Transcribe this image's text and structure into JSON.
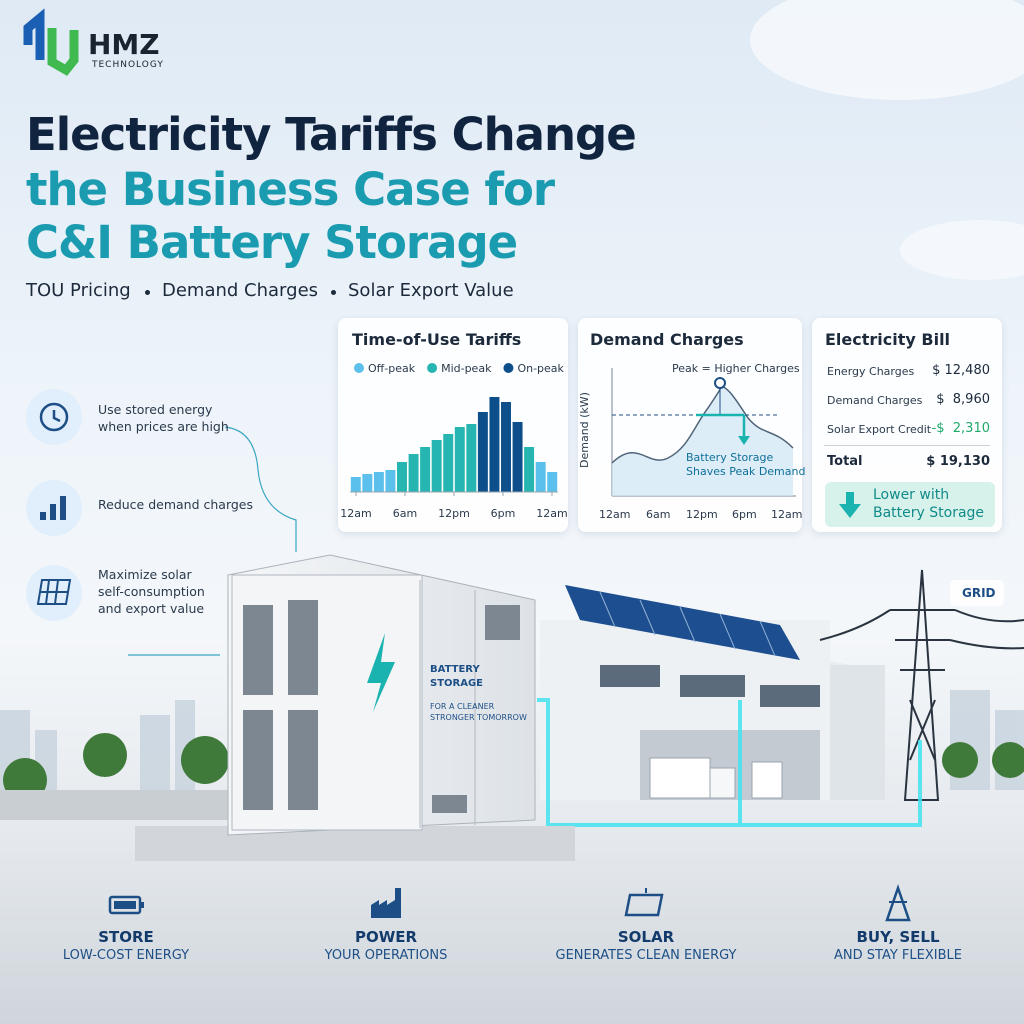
{
  "logo": {
    "name": "HMZ",
    "tagline": "TECHNOLOGY"
  },
  "headline": {
    "line1": "Electricity Tariffs Change",
    "line2": "the Business Case for",
    "line3": "C&I Battery Storage"
  },
  "subtitle_items": [
    "TOU Pricing",
    "Demand Charges",
    "Solar Export Value"
  ],
  "tou_chart": {
    "title": "Time-of-Use Tariffs",
    "x_labels": [
      "12am",
      "6am",
      "12pm",
      "6pm",
      "12am"
    ],
    "series": [
      {
        "name": "Off-peak",
        "color": "#5bc0eb",
        "values": [
          15,
          18,
          20,
          22,
          null,
          null,
          null,
          null,
          null,
          null,
          null,
          null,
          null,
          null,
          null,
          null,
          30,
          20
        ]
      },
      {
        "name": "Mid-peak",
        "color": "#26b5b0",
        "values": [
          null,
          null,
          null,
          null,
          30,
          38,
          45,
          52,
          58,
          65,
          68,
          null,
          null,
          null,
          null,
          45,
          null,
          null
        ]
      },
      {
        "name": "On-peak",
        "color": "#0d4f8b",
        "values": [
          null,
          null,
          null,
          null,
          null,
          null,
          null,
          null,
          null,
          null,
          null,
          80,
          95,
          90,
          70,
          null,
          null,
          null
        ]
      }
    ]
  },
  "demand_chart": {
    "title": "Demand Charges",
    "y_label": "Demand (kW)",
    "peak_note": "Peak = Higher Charges",
    "annotation": [
      "Battery Storage",
      "Shaves Peak Demand"
    ],
    "x_labels": [
      "12am",
      "6am",
      "12pm",
      "6pm",
      "12am"
    ]
  },
  "bill": {
    "title": "Electricity Bill",
    "rows": [
      {
        "label": "Energy Charges",
        "amount": "$ 12,480"
      },
      {
        "label": "Demand Charges",
        "amount": "$  8,960"
      },
      {
        "label": "Solar Export Credit",
        "amount": "-$  2,310"
      }
    ],
    "total": {
      "label": "Total",
      "amount": "$ 19,130"
    },
    "callout": [
      "Lower with",
      "Battery Storage"
    ]
  },
  "benefits": [
    {
      "lines": [
        "Use stored energy",
        "when prices are high"
      ]
    },
    {
      "lines": [
        "Reduce demand charges"
      ]
    },
    {
      "lines": [
        "Maximize solar",
        "self-consumption",
        "and export value"
      ]
    }
  ],
  "container": {
    "label": [
      "BATTERY",
      "STORAGE"
    ],
    "tagline": [
      "FOR A CLEANER",
      "STRONGER TOMORROW"
    ]
  },
  "grid_label": "GRID",
  "footer": [
    {
      "title": "STORE",
      "subtitle": "LOW-COST ENERGY"
    },
    {
      "title": "POWER",
      "subtitle": "YOUR OPERATIONS"
    },
    {
      "title": "SOLAR",
      "subtitle": "GENERATES CLEAN ENERGY"
    },
    {
      "title": "BUY, SELL",
      "subtitle": "AND STAY FLEXIBLE"
    }
  ]
}
